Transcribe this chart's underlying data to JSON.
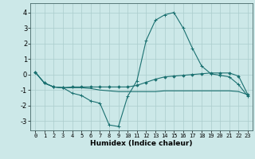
{
  "xlabel": "Humidex (Indice chaleur)",
  "ylabel": "",
  "bg_color": "#cce8e8",
  "grid_color": "#aacccc",
  "line_color": "#1a7070",
  "xlim": [
    -0.5,
    23.5
  ],
  "ylim": [
    -3.6,
    4.6
  ],
  "xticks": [
    0,
    1,
    2,
    3,
    4,
    5,
    6,
    7,
    8,
    9,
    10,
    11,
    12,
    13,
    14,
    15,
    16,
    17,
    18,
    19,
    20,
    21,
    22,
    23
  ],
  "yticks": [
    -3,
    -2,
    -1,
    0,
    1,
    2,
    3,
    4
  ],
  "series": [
    [
      0.15,
      -0.55,
      -0.8,
      -0.85,
      -1.2,
      -1.35,
      -1.7,
      -1.85,
      -3.25,
      -3.35,
      -1.4,
      -0.4,
      2.2,
      3.5,
      3.85,
      4.0,
      3.0,
      1.7,
      0.55,
      0.05,
      -0.05,
      -0.15,
      -0.65,
      -1.4
    ],
    [
      0.15,
      -0.55,
      -0.8,
      -0.85,
      -0.8,
      -0.8,
      -0.8,
      -0.8,
      -0.8,
      -0.8,
      -0.8,
      -0.7,
      -0.5,
      -0.3,
      -0.15,
      -0.1,
      -0.05,
      0.0,
      0.05,
      0.1,
      0.1,
      0.1,
      -0.1,
      -1.3
    ],
    [
      0.15,
      -0.55,
      -0.8,
      -0.85,
      -0.85,
      -0.85,
      -0.9,
      -1.0,
      -1.05,
      -1.1,
      -1.1,
      -1.1,
      -1.1,
      -1.1,
      -1.05,
      -1.05,
      -1.05,
      -1.05,
      -1.05,
      -1.05,
      -1.05,
      -1.05,
      -1.1,
      -1.3
    ]
  ]
}
